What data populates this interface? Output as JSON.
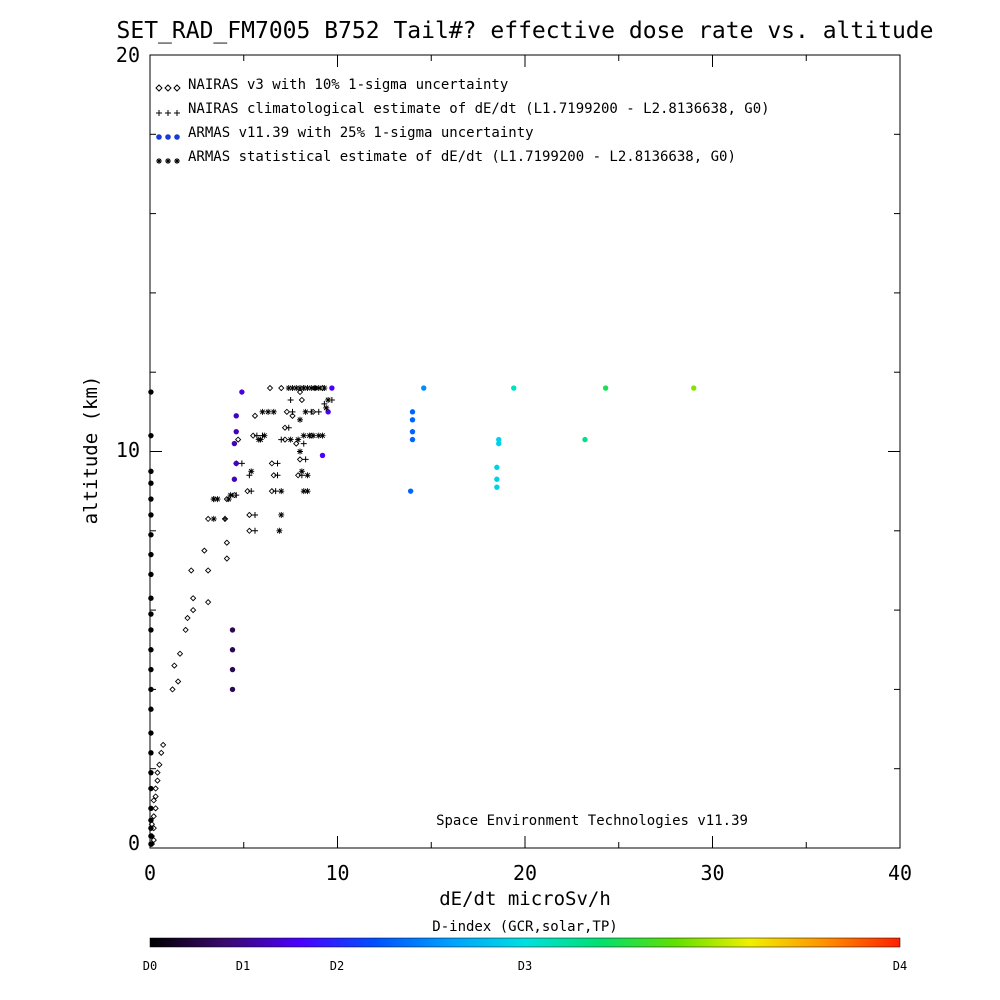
{
  "chart_data": {
    "type": "scatter",
    "title": "SET_RAD_FM7005  B752 Tail#? effective dose rate vs. altitude",
    "xlabel": "dE/dt microSv/h",
    "ylabel": "altitude (km)",
    "xlim": [
      0,
      40
    ],
    "ylim": [
      0,
      20
    ],
    "x_tick_labels": [
      "0",
      "10",
      "20",
      "30",
      "40"
    ],
    "y_tick_labels": [
      "0",
      "10",
      "20"
    ],
    "legend_position": "top-left",
    "legend": [
      {
        "marker": "diamond",
        "text": "NAIRAS v3 with 10% 1-sigma uncertainty"
      },
      {
        "marker": "plus",
        "text": "NAIRAS climatological estimate of dE/dt (L1.7199200 - L2.8136638, G0)"
      },
      {
        "marker": "dot",
        "text": "ARMAS v11.39 with 25% 1-sigma uncertainty"
      },
      {
        "marker": "star",
        "text": "ARMAS statistical estimate of dE/dt (L1.7199200 - L2.8136638, G0)"
      }
    ],
    "credit": "Space Environment Technologies v11.39",
    "colorbar": {
      "label": "D-index (GCR,solar,TP)",
      "ticks": [
        {
          "label": "D0",
          "value": 0
        },
        {
          "label": "D1",
          "value": 1
        },
        {
          "label": "D2",
          "value": 2
        },
        {
          "label": "D3",
          "value": 3
        },
        {
          "label": "D4",
          "value": 4
        }
      ],
      "colors": [
        "#000000",
        "#3a0a6e",
        "#4b00ff",
        "#0050ff",
        "#00a0ff",
        "#00e0e0",
        "#00e070",
        "#60e000",
        "#f0f000",
        "#ff9000",
        "#ff2000"
      ]
    },
    "series": [
      {
        "name": "NAIRAS v3 with 10% 1-sigma uncertainty",
        "marker": "diamond",
        "points": [
          [
            0.1,
            0.1
          ],
          [
            0.2,
            0.2
          ],
          [
            0.1,
            0.3
          ],
          [
            0.2,
            0.5
          ],
          [
            0.1,
            0.6
          ],
          [
            0.2,
            0.8
          ],
          [
            0.3,
            1.0
          ],
          [
            0.2,
            1.2
          ],
          [
            0.3,
            1.3
          ],
          [
            0.3,
            1.5
          ],
          [
            0.4,
            1.7
          ],
          [
            0.4,
            1.9
          ],
          [
            0.5,
            2.1
          ],
          [
            0.6,
            2.4
          ],
          [
            0.7,
            2.6
          ],
          [
            1.2,
            4.0
          ],
          [
            1.5,
            4.2
          ],
          [
            1.3,
            4.6
          ],
          [
            1.6,
            4.9
          ],
          [
            1.9,
            5.5
          ],
          [
            2.0,
            5.8
          ],
          [
            2.3,
            6.0
          ],
          [
            2.3,
            6.3
          ],
          [
            3.1,
            6.2
          ],
          [
            2.2,
            7.0
          ],
          [
            3.1,
            7.0
          ],
          [
            2.9,
            7.5
          ],
          [
            4.1,
            7.3
          ],
          [
            4.1,
            7.7
          ],
          [
            3.1,
            8.3
          ],
          [
            4.0,
            8.3
          ],
          [
            5.3,
            8.0
          ],
          [
            5.3,
            8.4
          ],
          [
            4.1,
            8.8
          ],
          [
            4.5,
            8.9
          ],
          [
            5.2,
            9.0
          ],
          [
            6.5,
            9.0
          ],
          [
            6.6,
            9.4
          ],
          [
            6.5,
            9.7
          ],
          [
            7.9,
            9.4
          ],
          [
            8.0,
            9.8
          ],
          [
            7.8,
            10.2
          ],
          [
            4.6,
            9.7
          ],
          [
            4.7,
            10.3
          ],
          [
            5.5,
            10.4
          ],
          [
            5.6,
            10.9
          ],
          [
            7.2,
            10.3
          ],
          [
            7.2,
            10.6
          ],
          [
            7.3,
            11.0
          ],
          [
            7.6,
            10.9
          ],
          [
            8.6,
            10.4
          ],
          [
            8.7,
            11.0
          ],
          [
            8.1,
            11.3
          ],
          [
            8.8,
            11.6
          ],
          [
            9.2,
            11.6
          ],
          [
            8.0,
            11.5
          ],
          [
            6.4,
            11.6
          ],
          [
            7.0,
            11.6
          ]
        ]
      },
      {
        "name": "NAIRAS climatological estimate of dE/dt (L1.7199200 - L2.8136638, G0)",
        "marker": "plus",
        "points": [
          [
            4.0,
            8.3
          ],
          [
            5.6,
            8.0
          ],
          [
            5.6,
            8.4
          ],
          [
            3.4,
            8.8
          ],
          [
            4.6,
            8.9
          ],
          [
            5.4,
            9.0
          ],
          [
            6.7,
            9.0
          ],
          [
            6.8,
            9.4
          ],
          [
            6.8,
            9.7
          ],
          [
            8.1,
            9.4
          ],
          [
            8.3,
            9.8
          ],
          [
            8.2,
            10.2
          ],
          [
            4.9,
            9.7
          ],
          [
            5.3,
            9.4
          ],
          [
            5.7,
            10.4
          ],
          [
            6.0,
            10.4
          ],
          [
            7.0,
            10.3
          ],
          [
            7.4,
            10.6
          ],
          [
            7.6,
            11.0
          ],
          [
            7.5,
            11.3
          ],
          [
            8.6,
            11.0
          ],
          [
            9.0,
            11.0
          ],
          [
            9.3,
            11.2
          ],
          [
            9.7,
            11.3
          ],
          [
            8.2,
            11.6
          ]
        ]
      },
      {
        "name": "ARMAS v11.39 with 25% 1-sigma uncertainty",
        "marker": "dot",
        "points": [
          [
            0.05,
            0.1,
            0.0
          ],
          [
            0.05,
            0.3,
            0.0
          ],
          [
            0.05,
            0.5,
            0.0
          ],
          [
            0.05,
            0.7,
            0.0
          ],
          [
            0.05,
            1.0,
            0.0
          ],
          [
            0.05,
            1.5,
            0.0
          ],
          [
            0.05,
            1.9,
            0.0
          ],
          [
            0.05,
            2.4,
            0.0
          ],
          [
            0.05,
            2.9,
            0.0
          ],
          [
            0.05,
            3.5,
            0.0
          ],
          [
            0.05,
            4.0,
            0.0
          ],
          [
            0.05,
            4.5,
            0.0
          ],
          [
            0.05,
            5.0,
            0.0
          ],
          [
            0.05,
            5.5,
            0.0
          ],
          [
            0.05,
            5.9,
            0.0
          ],
          [
            0.05,
            6.3,
            0.0
          ],
          [
            0.05,
            6.9,
            0.0
          ],
          [
            0.05,
            7.4,
            0.0
          ],
          [
            0.05,
            7.9,
            0.0
          ],
          [
            0.05,
            8.4,
            0.0
          ],
          [
            0.05,
            8.8,
            0.0
          ],
          [
            0.05,
            9.2,
            0.0
          ],
          [
            0.05,
            9.5,
            0.0
          ],
          [
            0.05,
            10.4,
            0.0
          ],
          [
            0.05,
            11.5,
            0.0
          ],
          [
            4.4,
            4.0,
            0.3
          ],
          [
            4.4,
            4.5,
            0.3
          ],
          [
            4.4,
            5.0,
            0.3
          ],
          [
            4.4,
            5.5,
            0.3
          ],
          [
            4.5,
            9.3,
            0.6
          ],
          [
            4.6,
            9.7,
            0.6
          ],
          [
            4.5,
            10.2,
            0.6
          ],
          [
            4.6,
            10.5,
            0.6
          ],
          [
            4.6,
            10.9,
            0.6
          ],
          [
            4.9,
            11.5,
            0.7
          ],
          [
            9.2,
            9.9,
            0.8
          ],
          [
            9.5,
            11.0,
            0.8
          ],
          [
            9.7,
            11.6,
            0.8
          ],
          [
            13.9,
            9.0,
            1.3
          ],
          [
            14.0,
            10.3,
            1.3
          ],
          [
            14.0,
            10.5,
            1.3
          ],
          [
            14.0,
            10.8,
            1.3
          ],
          [
            14.0,
            11.0,
            1.3
          ],
          [
            14.6,
            11.6,
            1.5
          ],
          [
            18.5,
            9.1,
            1.9
          ],
          [
            18.5,
            9.3,
            1.9
          ],
          [
            18.5,
            9.6,
            1.9
          ],
          [
            18.6,
            10.2,
            1.9
          ],
          [
            18.6,
            10.3,
            1.9
          ],
          [
            19.4,
            11.6,
            2.1
          ],
          [
            23.2,
            10.3,
            2.3
          ],
          [
            24.3,
            11.6,
            2.5
          ],
          [
            29.0,
            11.6,
            2.9
          ]
        ]
      },
      {
        "name": "ARMAS statistical estimate of dE/dt (L1.7199200 - L2.8136638, G0)",
        "marker": "star",
        "points": [
          [
            3.4,
            8.3
          ],
          [
            3.4,
            8.8
          ],
          [
            3.6,
            8.8
          ],
          [
            4.2,
            8.8
          ],
          [
            4.3,
            8.9
          ],
          [
            5.4,
            9.5
          ],
          [
            6.9,
            8.0
          ],
          [
            7.0,
            8.4
          ],
          [
            7.0,
            9.0
          ],
          [
            8.2,
            9.0
          ],
          [
            8.4,
            9.0
          ],
          [
            8.1,
            9.5
          ],
          [
            8.4,
            9.4
          ],
          [
            8.0,
            10.0
          ],
          [
            5.8,
            10.3
          ],
          [
            5.9,
            10.3
          ],
          [
            6.1,
            10.4
          ],
          [
            7.5,
            10.3
          ],
          [
            7.9,
            10.3
          ],
          [
            8.2,
            10.4
          ],
          [
            8.5,
            10.4
          ],
          [
            8.7,
            10.4
          ],
          [
            9.0,
            10.4
          ],
          [
            9.2,
            10.4
          ],
          [
            6.0,
            11.0
          ],
          [
            6.3,
            11.0
          ],
          [
            6.6,
            11.0
          ],
          [
            8.0,
            10.8
          ],
          [
            8.3,
            11.0
          ],
          [
            9.4,
            11.1
          ],
          [
            9.5,
            11.3
          ],
          [
            7.4,
            11.6
          ],
          [
            7.6,
            11.6
          ],
          [
            7.8,
            11.6
          ],
          [
            8.0,
            11.6
          ],
          [
            8.2,
            11.6
          ],
          [
            8.4,
            11.6
          ],
          [
            8.6,
            11.6
          ],
          [
            8.8,
            11.6
          ],
          [
            9.0,
            11.6
          ],
          [
            9.3,
            11.6
          ]
        ]
      }
    ]
  }
}
